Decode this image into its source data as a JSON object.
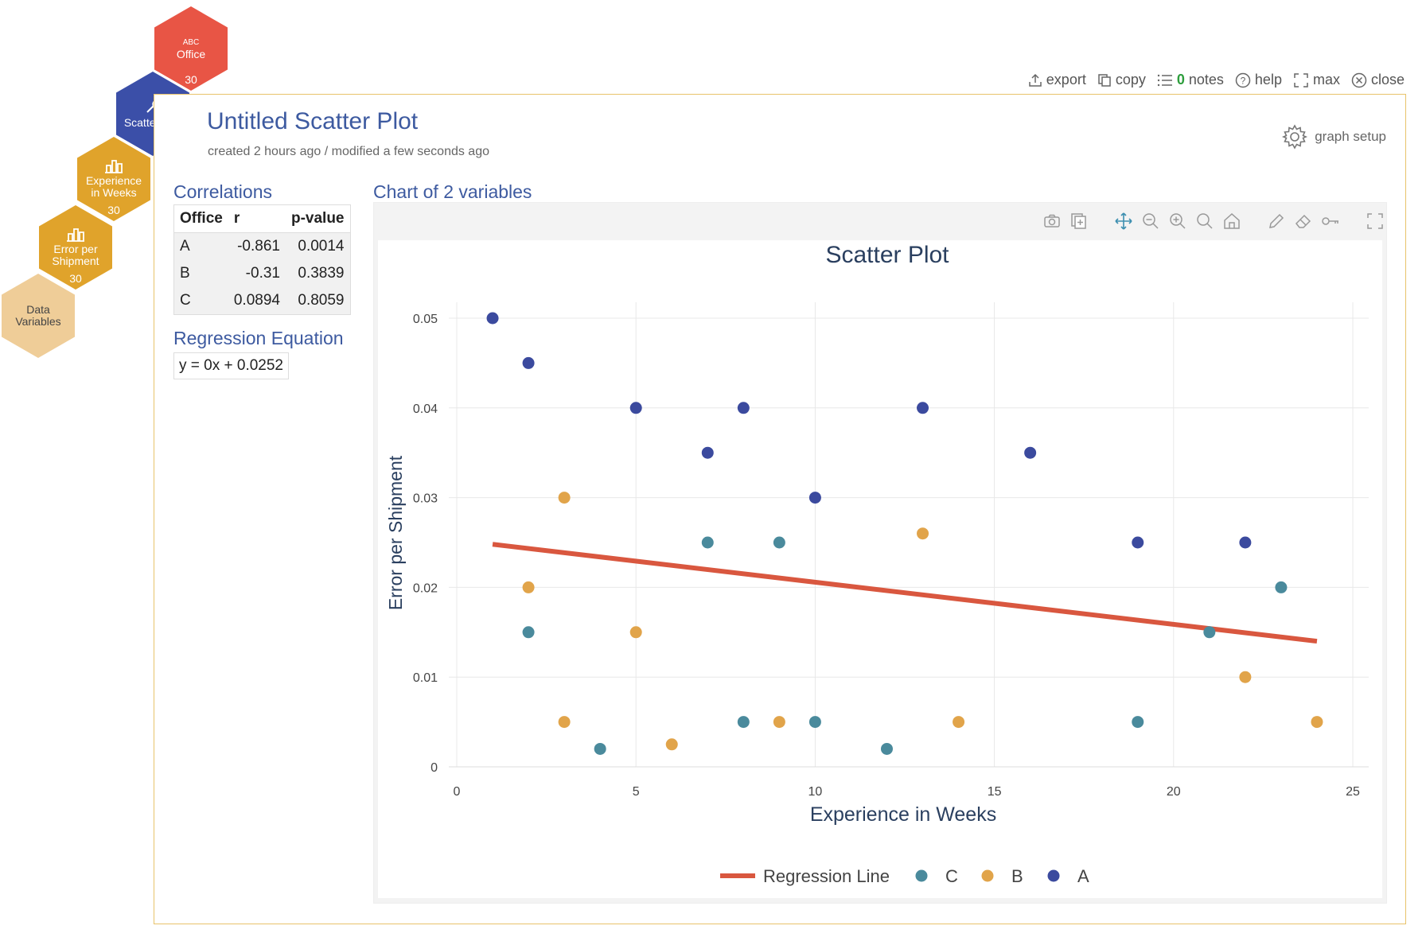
{
  "nav": {
    "office": {
      "badge": "ABC",
      "label": "Office",
      "count": "30",
      "color": "#e85545"
    },
    "scatter": {
      "label": "Scatter Plot",
      "color": "#3b4fa8"
    },
    "experience": {
      "label1": "Experience",
      "label2": "in Weeks",
      "count": "30",
      "color": "#e0a32b"
    },
    "error": {
      "label1": "Error per",
      "label2": "Shipment",
      "count": "30",
      "color": "#e0a32b"
    },
    "data": {
      "label1": "Data",
      "label2": "Variables",
      "color": "#efcd98"
    }
  },
  "toolbar": {
    "export": "export",
    "copy": "copy",
    "notes_count": "0",
    "notes": "notes",
    "help": "help",
    "max": "max",
    "close": "close"
  },
  "header": {
    "title": "Untitled Scatter Plot",
    "subtitle": "created 2 hours ago / modified a few seconds ago",
    "graph_setup": "graph setup"
  },
  "correlations": {
    "title": "Correlations",
    "headers": [
      "Office",
      "r",
      "p-value"
    ],
    "rows": [
      {
        "office": "A",
        "r": "-0.861",
        "p": "0.0014"
      },
      {
        "office": "B",
        "r": "-0.31",
        "p": "0.3839"
      },
      {
        "office": "C",
        "r": "0.0894",
        "p": "0.8059"
      }
    ]
  },
  "regression": {
    "title": "Regression Equation",
    "equation": "y = 0x + 0.0252"
  },
  "chart_section_title": "Chart of 2 variables",
  "chart_data": {
    "type": "scatter",
    "title": "Scatter Plot",
    "xlabel": "Experience in Weeks",
    "ylabel": "Error per Shipment",
    "xlim": [
      0,
      25
    ],
    "ylim": [
      0,
      0.05
    ],
    "xticks": [
      0,
      5,
      10,
      15,
      20,
      25
    ],
    "yticks": [
      0,
      0.01,
      0.02,
      0.03,
      0.04,
      0.05
    ],
    "ytick_labels": [
      "0",
      "0.01",
      "0.02",
      "0.03",
      "0.04",
      "0.05"
    ],
    "grid": true,
    "legend_position": "bottom",
    "series": [
      {
        "name": "A",
        "color": "#3b4a9e",
        "x": [
          1,
          2,
          5,
          7,
          8,
          10,
          13,
          16,
          19,
          22
        ],
        "y": [
          0.05,
          0.045,
          0.04,
          0.035,
          0.04,
          0.03,
          0.04,
          0.035,
          0.025,
          0.025
        ]
      },
      {
        "name": "B",
        "color": "#e1a44a",
        "x": [
          2,
          3,
          3,
          5,
          6,
          9,
          13,
          14,
          22,
          24
        ],
        "y": [
          0.02,
          0.03,
          0.005,
          0.015,
          0.0025,
          0.005,
          0.026,
          0.005,
          0.01,
          0.005
        ]
      },
      {
        "name": "C",
        "color": "#4a8a9c",
        "x": [
          2,
          4,
          7,
          8,
          9,
          10,
          12,
          19,
          21,
          23
        ],
        "y": [
          0.015,
          0.002,
          0.025,
          0.005,
          0.025,
          0.005,
          0.002,
          0.005,
          0.015,
          0.02
        ]
      }
    ],
    "regression_line": {
      "name": "Regression Line",
      "color": "#d9573f",
      "x": [
        1,
        24
      ],
      "y": [
        0.0248,
        0.014
      ]
    },
    "legend": [
      "Regression Line",
      "C",
      "B",
      "A"
    ]
  }
}
